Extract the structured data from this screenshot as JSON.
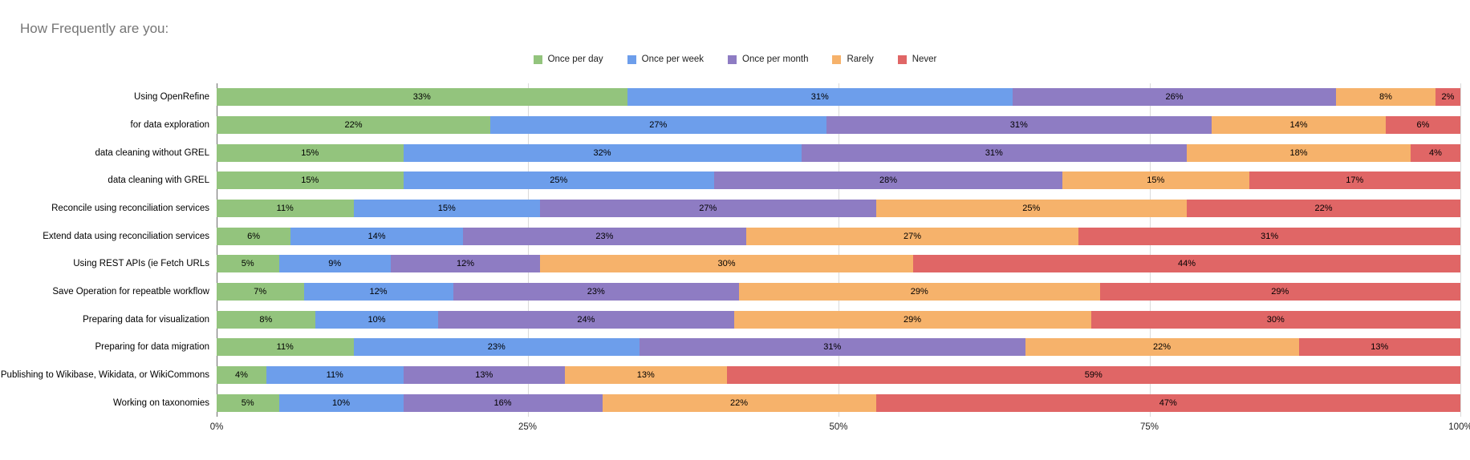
{
  "chart_data": {
    "type": "bar",
    "stacked": true,
    "orientation": "horizontal",
    "title": "How Frequently are you:",
    "legend_position": "top",
    "grid": true,
    "xlim": [
      0,
      100
    ],
    "x_ticks": [
      "0%",
      "25%",
      "50%",
      "75%",
      "100%"
    ],
    "value_suffix": "%",
    "categories": [
      "Using OpenRefine",
      "for data exploration",
      "data cleaning without GREL",
      "data cleaning with GREL",
      "Reconcile using reconciliation services",
      "Extend data using reconciliation services",
      "Using REST APIs (ie Fetch URLs",
      "Save Operation for repeatble workflow",
      "Preparing data for visualization",
      "Preparing for data migration",
      "Publishing to Wikibase, Wikidata, or WikiCommons",
      "Working on taxonomies"
    ],
    "series": [
      {
        "name": "Once per day",
        "color": "#93c47d",
        "values": [
          33,
          22,
          15,
          15,
          11,
          6,
          5,
          7,
          8,
          11,
          4,
          5
        ]
      },
      {
        "name": "Once per week",
        "color": "#6d9eeb",
        "values": [
          31,
          27,
          32,
          25,
          15,
          14,
          9,
          12,
          10,
          23,
          11,
          10
        ]
      },
      {
        "name": "Once per month",
        "color": "#8e7cc3",
        "values": [
          26,
          31,
          31,
          28,
          27,
          23,
          12,
          23,
          24,
          31,
          13,
          16
        ]
      },
      {
        "name": "Rarely",
        "color": "#f6b26b",
        "values": [
          8,
          14,
          18,
          15,
          25,
          27,
          30,
          29,
          29,
          22,
          13,
          22
        ]
      },
      {
        "name": "Never",
        "color": "#e06666",
        "values": [
          2,
          6,
          4,
          17,
          22,
          31,
          44,
          29,
          30,
          13,
          59,
          47
        ]
      }
    ]
  }
}
